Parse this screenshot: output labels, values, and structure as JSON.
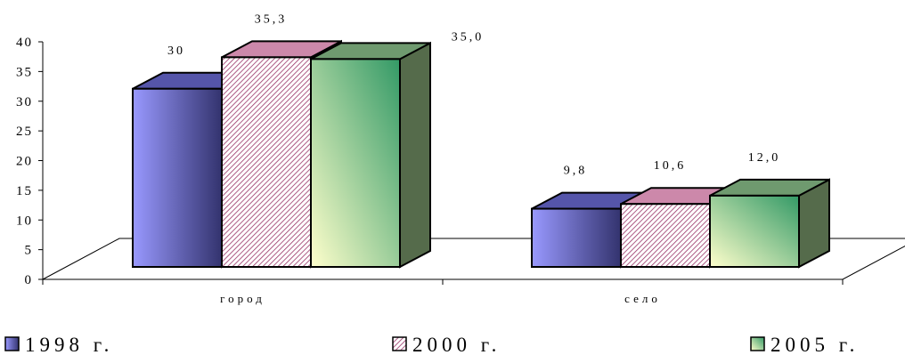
{
  "chart_data": {
    "type": "bar",
    "categories": [
      "город",
      "село"
    ],
    "series": [
      {
        "name": "1998 г.",
        "values": [
          30,
          9.8
        ],
        "labels": [
          "30",
          "9,8"
        ]
      },
      {
        "name": "2000 г.",
        "values": [
          35.3,
          10.6
        ],
        "labels": [
          "35,3",
          "10,6"
        ]
      },
      {
        "name": "2005 г.",
        "values": [
          35.0,
          12.0
        ],
        "labels": [
          "35,0",
          "12,0"
        ]
      }
    ],
    "y_ticks": [
      "0",
      "5",
      "10",
      "15",
      "20",
      "25",
      "30",
      "35",
      "40"
    ],
    "ylim": [
      0,
      40
    ],
    "title": "",
    "xlabel": "",
    "ylabel": "",
    "grid": false,
    "legend": "bottom",
    "style": "3d",
    "colors": {
      "s1998": {
        "front_light": "#9999ff",
        "front_dark": "#33336e",
        "side": "#2e2e66",
        "top": "#5555aa"
      },
      "s2000": {
        "pattern_bg": "#ffffff",
        "pattern_line": "#993366",
        "side": "#cc99bb",
        "top": "#cc88aa"
      },
      "s2005": {
        "front_light": "#ffffcc",
        "front_dark": "#339966",
        "side": "#556b4b",
        "top": "#6f9a6f"
      }
    }
  }
}
